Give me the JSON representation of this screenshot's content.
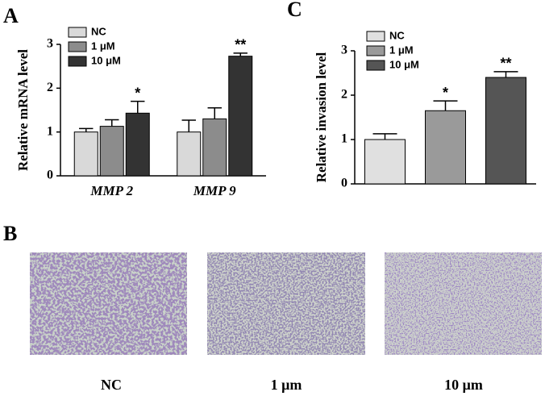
{
  "panel_labels": [
    "A",
    "B",
    "C"
  ],
  "image_captions": [
    "NC",
    "1 μm",
    "10 μm"
  ],
  "chart_data": [
    {
      "type": "bar",
      "ylabel": "Relative mRNA level",
      "categories": [
        "MMP 2",
        "MMP 9"
      ],
      "series": [
        {
          "name": "NC",
          "color": "#d9d9d9",
          "values": [
            1.0,
            1.0
          ],
          "errors": [
            0.08,
            0.27
          ],
          "annotations": [
            null,
            null
          ]
        },
        {
          "name": "1 μM",
          "color": "#8c8c8c",
          "values": [
            1.13,
            1.3
          ],
          "errors": [
            0.15,
            0.25
          ],
          "annotations": [
            null,
            null
          ]
        },
        {
          "name": "10 μM",
          "color": "#333333",
          "values": [
            1.43,
            2.73
          ],
          "errors": [
            0.27,
            0.07
          ],
          "annotations": [
            "*",
            "**"
          ]
        }
      ],
      "ylim": [
        0,
        3
      ],
      "yticks": [
        0,
        1,
        2,
        3
      ]
    },
    {
      "type": "bar",
      "ylabel": "Relative invasion level",
      "categories": [
        null
      ],
      "series": [
        {
          "name": "NC",
          "color": "#e0e0e0",
          "values": [
            1.0
          ],
          "errors": [
            0.13
          ],
          "annotations": [
            null
          ]
        },
        {
          "name": "1 μM",
          "color": "#9a9a9a",
          "values": [
            1.65
          ],
          "errors": [
            0.22
          ],
          "annotations": [
            "*"
          ]
        },
        {
          "name": "10 μM",
          "color": "#555555",
          "values": [
            2.4
          ],
          "errors": [
            0.13
          ],
          "annotations": [
            "**"
          ]
        }
      ],
      "ylim": [
        0,
        3
      ],
      "yticks": [
        0,
        1,
        2,
        3
      ]
    }
  ]
}
